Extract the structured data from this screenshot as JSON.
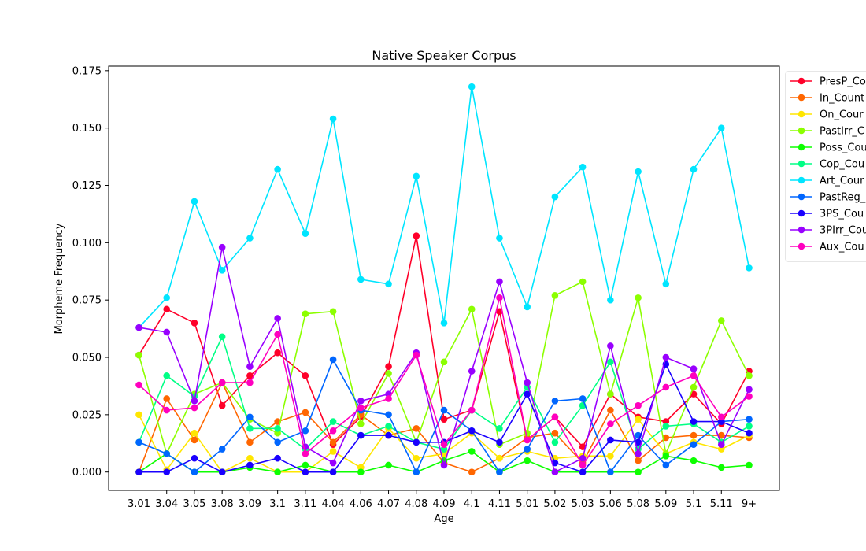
{
  "chart_data": {
    "type": "line",
    "title": "Native Speaker Corpus",
    "xlabel": "Age",
    "ylabel": "Morpheme Frequency",
    "ylim": [
      -0.008,
      0.177
    ],
    "yticks": [
      "0.000",
      "0.025",
      "0.050",
      "0.075",
      "0.100",
      "0.125",
      "0.150",
      "0.175"
    ],
    "grid": false,
    "legend_position": "upper-right-outside",
    "categories": [
      "3.01",
      "3.04",
      "3.05",
      "3.08",
      "3.09",
      "3.1",
      "3.11",
      "4.04",
      "4.06",
      "4.07",
      "4.08",
      "4.09",
      "4.1",
      "4.11",
      "5.01",
      "5.02",
      "5.03",
      "5.06",
      "5.08",
      "5.09",
      "5.1",
      "5.11",
      "9+"
    ],
    "series": [
      {
        "name": "PresP_Co",
        "color": "#ff0029",
        "values": [
          0.051,
          0.071,
          0.065,
          0.029,
          0.042,
          0.052,
          0.042,
          0.012,
          0.024,
          0.046,
          0.103,
          0.023,
          0.027,
          0.07,
          0.014,
          0.024,
          0.011,
          0.034,
          0.024,
          0.022,
          0.034,
          0.021,
          0.044
        ]
      },
      {
        "name": "In_Count",
        "color": "#ff6600",
        "values": [
          0.0,
          0.032,
          0.014,
          0.039,
          0.013,
          0.022,
          0.026,
          0.013,
          0.025,
          0.016,
          0.019,
          0.004,
          0.0,
          0.006,
          0.015,
          0.017,
          0.004,
          0.027,
          0.005,
          0.015,
          0.016,
          0.016,
          0.015
        ]
      },
      {
        "name": "On_Cour",
        "color": "#ffe600",
        "values": [
          0.025,
          0.001,
          0.017,
          0.0,
          0.006,
          0.0,
          0.0,
          0.009,
          0.002,
          0.019,
          0.006,
          0.008,
          0.017,
          0.006,
          0.009,
          0.006,
          0.007,
          0.007,
          0.023,
          0.008,
          0.013,
          0.01,
          0.016
        ]
      },
      {
        "name": "PastIrr_C",
        "color": "#8cff00",
        "values": [
          0.051,
          0.008,
          0.034,
          0.039,
          0.023,
          0.017,
          0.069,
          0.07,
          0.021,
          0.043,
          0.013,
          0.048,
          0.071,
          0.012,
          0.017,
          0.077,
          0.083,
          0.034,
          0.076,
          0.008,
          0.037,
          0.066,
          0.042
        ]
      },
      {
        "name": "Poss_Cou",
        "color": "#0dff00",
        "values": [
          0.0,
          0.008,
          0.0,
          0.0,
          0.002,
          0.0,
          0.003,
          0.0,
          0.0,
          0.003,
          0.0,
          0.005,
          0.009,
          0.0,
          0.005,
          0.0,
          0.0,
          0.0,
          0.0,
          0.007,
          0.005,
          0.002,
          0.003
        ]
      },
      {
        "name": "Cop_Cou",
        "color": "#00ff85",
        "values": [
          0.013,
          0.042,
          0.033,
          0.059,
          0.019,
          0.019,
          0.01,
          0.022,
          0.016,
          0.02,
          0.013,
          0.01,
          0.027,
          0.019,
          0.037,
          0.013,
          0.029,
          0.048,
          0.01,
          0.02,
          0.021,
          0.013,
          0.02
        ]
      },
      {
        "name": "Art_Cour",
        "color": "#00e5ff",
        "values": [
          0.063,
          0.076,
          0.118,
          0.088,
          0.102,
          0.132,
          0.104,
          0.154,
          0.084,
          0.082,
          0.129,
          0.065,
          0.168,
          0.102,
          0.072,
          0.12,
          0.133,
          0.075,
          0.131,
          0.082,
          0.132,
          0.15,
          0.089
        ]
      },
      {
        "name": "PastReg_",
        "color": "#0066ff",
        "values": [
          0.013,
          0.008,
          0.0,
          0.01,
          0.024,
          0.013,
          0.018,
          0.049,
          0.027,
          0.025,
          0.0,
          0.027,
          0.018,
          0.0,
          0.01,
          0.031,
          0.032,
          0.0,
          0.016,
          0.003,
          0.012,
          0.022,
          0.023
        ]
      },
      {
        "name": "3PS_Cou",
        "color": "#1a00ff",
        "values": [
          0.0,
          0.0,
          0.006,
          0.0,
          0.003,
          0.006,
          0.0,
          0.0,
          0.016,
          0.016,
          0.013,
          0.013,
          0.018,
          0.013,
          0.034,
          0.004,
          0.0,
          0.014,
          0.013,
          0.047,
          0.022,
          0.022,
          0.017
        ]
      },
      {
        "name": "3PIrr_Cou",
        "color": "#9900ff",
        "values": [
          0.063,
          0.061,
          0.031,
          0.098,
          0.046,
          0.067,
          0.011,
          0.004,
          0.031,
          0.034,
          0.052,
          0.003,
          0.044,
          0.083,
          0.039,
          0.0,
          0.006,
          0.055,
          0.008,
          0.05,
          0.045,
          0.012,
          0.036
        ]
      },
      {
        "name": "Aux_Cou",
        "color": "#ff00bf",
        "values": [
          0.038,
          0.027,
          0.028,
          0.039,
          0.039,
          0.06,
          0.008,
          0.018,
          0.028,
          0.032,
          0.051,
          0.012,
          0.027,
          0.076,
          0.014,
          0.024,
          0.003,
          0.021,
          0.029,
          0.037,
          0.042,
          0.024,
          0.033
        ]
      }
    ]
  }
}
